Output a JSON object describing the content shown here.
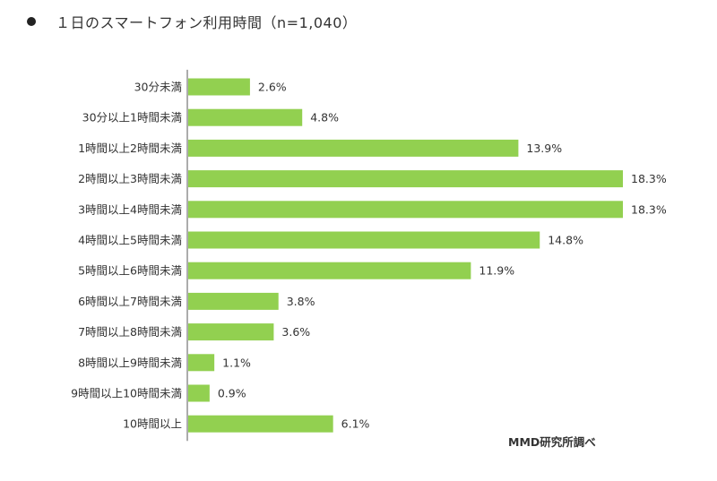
{
  "title": "１日のスマートフォン利用時間（n=1,040）",
  "source": "MMD研究所調べ",
  "colors": {
    "bar": "#92d050",
    "axis": "#595959"
  },
  "chart_data": {
    "type": "bar",
    "orientation": "horizontal",
    "title": "１日のスマートフォン利用時間（n=1,040）",
    "categories": [
      "30分未満",
      "30分以上1時間未満",
      "1時間以上2時間未満",
      "2時間以上3時間未満",
      "3時間以上4時間未満",
      "4時間以上5時間未満",
      "5時間以上6時間未満",
      "6時間以上7時間未満",
      "7時間以上8時間未満",
      "8時間以上9時間未満",
      "9時間以上10時間未満",
      "10時間以上"
    ],
    "values": [
      2.6,
      4.8,
      13.9,
      18.3,
      18.3,
      14.8,
      11.9,
      3.8,
      3.6,
      1.1,
      0.9,
      6.1
    ],
    "labels": [
      "2.6%",
      "4.8%",
      "13.9%",
      "18.3%",
      "18.3%",
      "14.8%",
      "11.9%",
      "3.8%",
      "3.6%",
      "1.1%",
      "0.9%",
      "6.1%"
    ],
    "unit": "%",
    "xlim": [
      0,
      18.3
    ],
    "xlabel": "",
    "ylabel": "",
    "grid": false,
    "legend": "none"
  }
}
